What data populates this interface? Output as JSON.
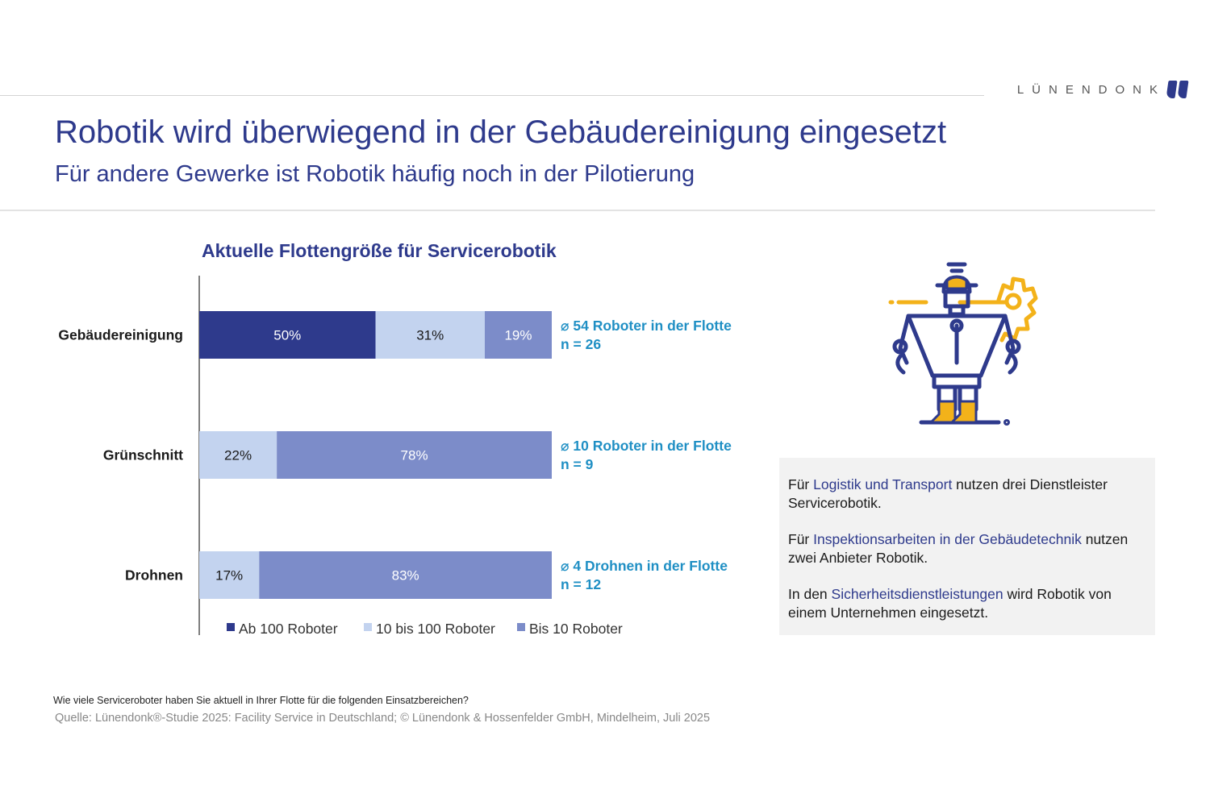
{
  "brand": {
    "name": "LÜNENDONK",
    "mark": "quote-mark-logo"
  },
  "header": {
    "title": "Robotik wird überwiegend in der Gebäudereinigung eingesetzt",
    "subtitle": "Für andere Gewerke ist Robotik häufig noch in der Pilotierung"
  },
  "chart_data": {
    "type": "bar",
    "orientation": "horizontal",
    "stacked": true,
    "title": "Aktuelle Flottengröße für Servicerobotik",
    "categories": [
      "Gebäudereinigung",
      "Grünschnitt",
      "Drohnen"
    ],
    "series": [
      {
        "name": "Ab 100 Roboter",
        "color": "#2e3a8c",
        "values": [
          50,
          0,
          0
        ],
        "labels": [
          "50%",
          "",
          ""
        ]
      },
      {
        "name": "10 bis 100 Roboter",
        "color": "#c3d3ef",
        "values": [
          31,
          22,
          17
        ],
        "labels": [
          "31%",
          "22%",
          "17%"
        ]
      },
      {
        "name": "Bis 10 Roboter",
        "color": "#7c8cc9",
        "values": [
          19,
          78,
          83
        ],
        "labels": [
          "19%",
          "78%",
          "83%"
        ]
      }
    ],
    "annotations": [
      {
        "line1": "⌀ 54 Roboter in der Flotte",
        "line2": "n = 26"
      },
      {
        "line1": "⌀ 10 Roboter in der Flotte",
        "line2": "n = 9"
      },
      {
        "line1": "⌀ 4 Drohnen in der Flotte",
        "line2": "n = 12"
      }
    ],
    "xlim": [
      0,
      100
    ],
    "unit": "%",
    "legend_position": "bottom",
    "grid": false,
    "annotation_color": "#1f8fc4"
  },
  "info_box": {
    "paragraphs": [
      {
        "pre": "Für ",
        "highlight": "Logistik und Transport",
        "post": " nutzen drei Dienstleister Servicerobotik."
      },
      {
        "pre": "Für ",
        "highlight": "Inspektionsarbeiten in der Gebäudetechnik",
        "post": " nutzen zwei Anbieter Robotik."
      },
      {
        "pre": "In den ",
        "highlight": "Sicherheitsdienstleistungen",
        "post": " wird Robotik von einem Unternehmen eingesetzt."
      }
    ]
  },
  "illustration": {
    "icon": "robot-with-gear-icon"
  },
  "footer": {
    "question": "Wie viele Serviceroboter haben Sie aktuell in Ihrer Flotte für die folgenden Einsatzbereichen?",
    "source": "Quelle: Lünendonk®-Studie 2025: Facility Service in Deutschland; © Lünendonk & Hossenfelder GmbH, Mindelheim, Juli 2025"
  }
}
